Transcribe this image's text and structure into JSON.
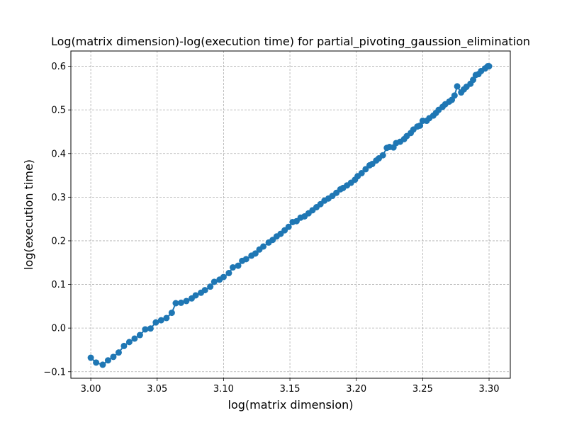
{
  "chart_data": {
    "type": "line",
    "title": "Log(matrix dimension)-log(execution time) for partial_pivoting_gaussion_elimination",
    "xlabel": "log(matrix dimension)",
    "ylabel": "log(execution time)",
    "xlim": [
      2.985,
      3.316
    ],
    "ylim": [
      -0.115,
      0.635
    ],
    "xticks": [
      3.0,
      3.05,
      3.1,
      3.15,
      3.2,
      3.25,
      3.3
    ],
    "xtick_labels": [
      "3.00",
      "3.05",
      "3.10",
      "3.15",
      "3.20",
      "3.25",
      "3.30"
    ],
    "yticks": [
      -0.1,
      0.0,
      0.1,
      0.2,
      0.3,
      0.4,
      0.5,
      0.6
    ],
    "ytick_labels": [
      "−0.1",
      "0.0",
      "0.1",
      "0.2",
      "0.3",
      "0.4",
      "0.5",
      "0.6"
    ],
    "grid": true,
    "grid_style": "dashed",
    "legend": "none",
    "marker": "circle",
    "color": "#1f77b4",
    "series": [
      {
        "x": [
          3.0,
          3.004,
          3.009,
          3.013,
          3.017,
          3.021,
          3.025,
          3.029,
          3.033,
          3.037,
          3.041,
          3.045,
          3.049,
          3.053,
          3.057,
          3.061,
          3.064,
          3.068,
          3.072,
          3.076,
          3.079,
          3.083,
          3.086,
          3.09,
          3.093,
          3.097,
          3.1,
          3.104,
          3.107,
          3.111,
          3.114,
          3.117,
          3.121,
          3.124,
          3.127,
          3.13,
          3.134,
          3.137,
          3.14,
          3.143,
          3.146,
          3.149,
          3.152,
          3.155,
          3.158,
          3.161,
          3.164,
          3.167,
          3.17,
          3.173,
          3.176,
          3.179,
          3.182,
          3.185,
          3.188,
          3.19,
          3.193,
          3.196,
          3.199,
          3.201,
          3.204,
          3.207,
          3.21,
          3.212,
          3.215,
          3.217,
          3.22,
          3.223,
          3.225,
          3.228,
          3.23,
          3.233,
          3.236,
          3.238,
          3.241,
          3.243,
          3.246,
          3.248,
          3.25,
          3.253,
          3.255,
          3.258,
          3.26,
          3.262,
          3.265,
          3.267,
          3.27,
          3.272,
          3.274,
          3.276,
          3.279,
          3.281,
          3.283,
          3.286,
          3.288,
          3.29,
          3.292,
          3.294,
          3.297,
          3.299,
          3.3
        ],
        "y": [
          -0.068,
          -0.079,
          -0.084,
          -0.074,
          -0.066,
          -0.056,
          -0.041,
          -0.032,
          -0.024,
          -0.016,
          -0.003,
          -0.001,
          0.013,
          0.018,
          0.023,
          0.035,
          0.057,
          0.058,
          0.062,
          0.068,
          0.075,
          0.081,
          0.087,
          0.095,
          0.106,
          0.111,
          0.117,
          0.126,
          0.139,
          0.143,
          0.154,
          0.158,
          0.166,
          0.171,
          0.18,
          0.187,
          0.196,
          0.202,
          0.21,
          0.216,
          0.224,
          0.232,
          0.243,
          0.245,
          0.253,
          0.256,
          0.263,
          0.27,
          0.277,
          0.284,
          0.292,
          0.297,
          0.303,
          0.31,
          0.318,
          0.321,
          0.327,
          0.333,
          0.34,
          0.348,
          0.355,
          0.364,
          0.373,
          0.376,
          0.384,
          0.389,
          0.396,
          0.413,
          0.415,
          0.414,
          0.424,
          0.427,
          0.433,
          0.44,
          0.447,
          0.455,
          0.462,
          0.464,
          0.475,
          0.475,
          0.481,
          0.487,
          0.493,
          0.5,
          0.507,
          0.513,
          0.519,
          0.523,
          0.533,
          0.554,
          0.54,
          0.547,
          0.553,
          0.56,
          0.569,
          0.58,
          0.582,
          0.589,
          0.595,
          0.6,
          0.6
        ]
      }
    ]
  }
}
